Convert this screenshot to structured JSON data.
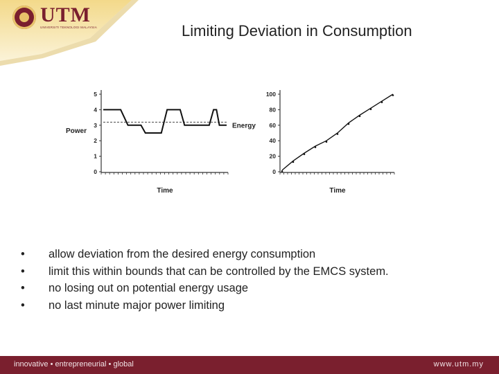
{
  "header": {
    "logo_text": "UTM",
    "logo_subtext": "UNIVERSITI TEKNOLOGI MALAYSIA",
    "colors": {
      "maroon": "#7a1f2e",
      "gold": "#e8c36a"
    }
  },
  "slide": {
    "title": "Limiting Deviation in Consumption"
  },
  "chart_data": [
    {
      "type": "line",
      "ylabel": "Power",
      "xlabel": "Time",
      "ylim": [
        0,
        5
      ],
      "yticks": [
        "0",
        "1",
        "2",
        "3",
        "4",
        "5"
      ],
      "series": [
        {
          "values_xy": [
            [
              0,
              4
            ],
            [
              12,
              4
            ],
            [
              17,
              3
            ],
            [
              26,
              3
            ],
            [
              29,
              2.5
            ],
            [
              40,
              2.5
            ],
            [
              44,
              4
            ],
            [
              53,
              4
            ],
            [
              56,
              3
            ],
            [
              73,
              3
            ],
            [
              76,
              4
            ],
            [
              78,
              4
            ],
            [
              80,
              3
            ],
            [
              85,
              3
            ]
          ]
        }
      ],
      "reference_line": {
        "y": 3.2,
        "style": "dashed"
      },
      "annotation": "Energy"
    },
    {
      "type": "line",
      "xlabel": "Time",
      "ylim": [
        0,
        100
      ],
      "yticks": [
        "0",
        "20",
        "40",
        "60",
        "80",
        "100"
      ],
      "series": [
        {
          "values_xy": [
            [
              0,
              2
            ],
            [
              10,
              14
            ],
            [
              20,
              24
            ],
            [
              30,
              33
            ],
            [
              40,
              40
            ],
            [
              50,
              50
            ],
            [
              60,
              63
            ],
            [
              70,
              73
            ],
            [
              80,
              82
            ],
            [
              90,
              91
            ],
            [
              100,
              100
            ]
          ]
        }
      ]
    }
  ],
  "bullets": [
    "allow deviation from the desired energy consumption",
    "limit this within bounds that can be controlled by the EMCS system.",
    "no losing out on potential energy usage",
    "no last minute major power limiting"
  ],
  "footer": {
    "tagline": "innovative • entrepreneurial • global",
    "website": "www.utm.my"
  }
}
